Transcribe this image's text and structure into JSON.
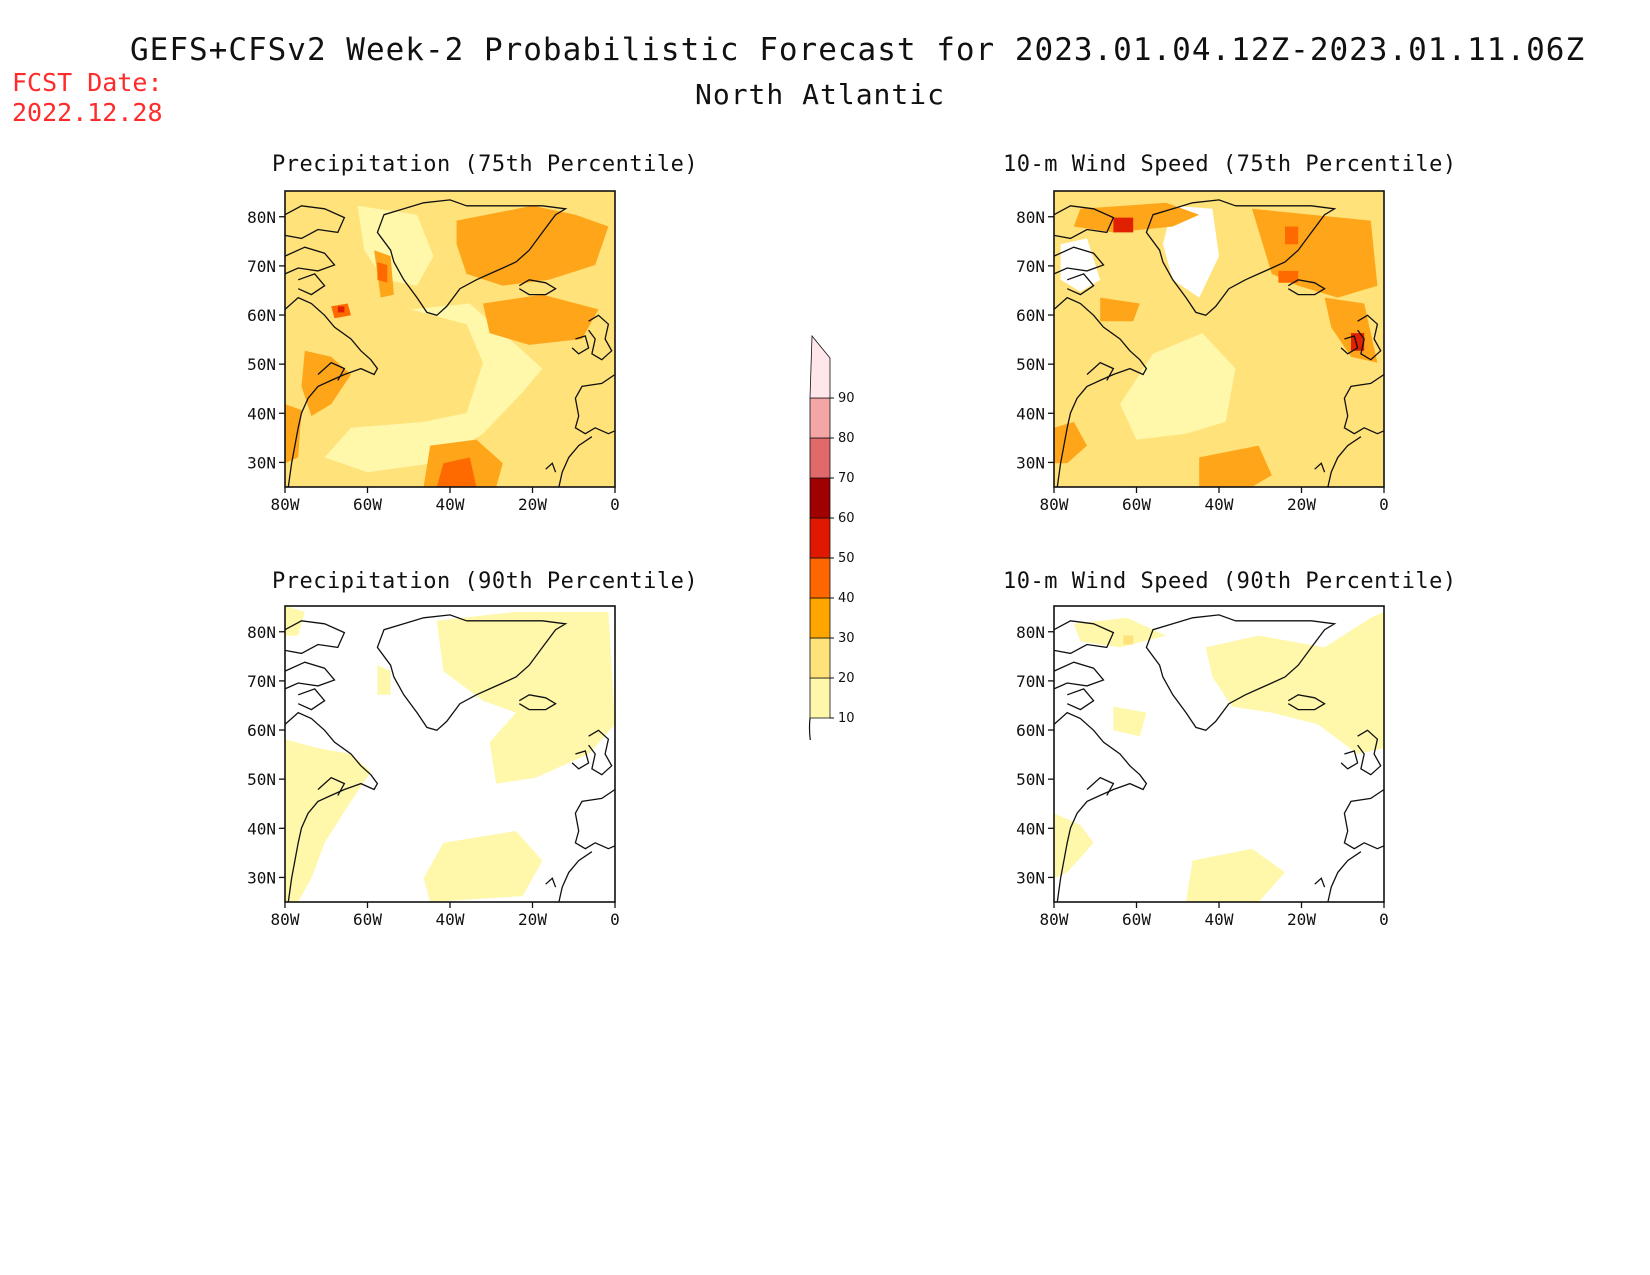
{
  "header": {
    "title": "GEFS+CFSv2 Week-2 Probabilistic Forecast for 2023.01.04.12Z-2023.01.11.06Z",
    "subtitle": "North Atlantic",
    "fcst_label": "FCST Date:",
    "fcst_date": "2022.12.28"
  },
  "axes": {
    "lat_ticks": [
      "80N",
      "70N",
      "60N",
      "50N",
      "40N",
      "30N"
    ],
    "lon_ticks": [
      "80W",
      "60W",
      "40W",
      "20W",
      "0"
    ]
  },
  "panels": [
    {
      "id": "precip-75",
      "title": "Precipitation (75th Percentile)"
    },
    {
      "id": "wind-75",
      "title": "10-m Wind Speed (75th Percentile)"
    },
    {
      "id": "precip-90",
      "title": "Precipitation (90th Percentile)"
    },
    {
      "id": "wind-90",
      "title": "10-m Wind Speed (90th Percentile)"
    }
  ],
  "colorbar": {
    "levels": [
      "10",
      "20",
      "30",
      "40",
      "50",
      "60",
      "70",
      "80",
      "90"
    ],
    "colors": [
      "#fff7aa",
      "#ffe27a",
      "#ffa500",
      "#ff6600",
      "#e01800",
      "#a00000",
      "#e06a6a",
      "#f4a6a6",
      "#ffe6ea"
    ]
  },
  "colors": {
    "c10": "#fff7aa",
    "c20": "#ffe27a",
    "c30": "#ffa51a",
    "c40": "#ff6a00",
    "c50": "#e02000"
  }
}
